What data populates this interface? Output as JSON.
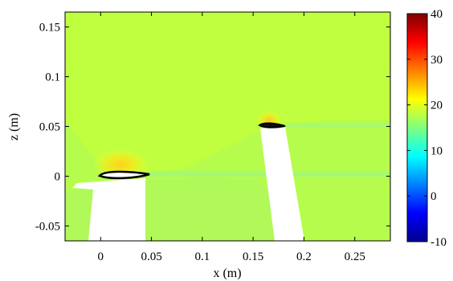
{
  "chart_data": {
    "type": "heatmap",
    "title": "",
    "xlabel": "x (m)",
    "ylabel": "z (m)",
    "xlim": [
      -0.035,
      0.285
    ],
    "ylim": [
      -0.065,
      0.165
    ],
    "x_ticks": [
      0,
      0.05,
      0.1,
      0.15,
      0.2,
      0.25
    ],
    "x_tick_labels": [
      "0",
      "0.05",
      "0.1",
      "0.15",
      "0.2",
      "0.25"
    ],
    "y_ticks": [
      -0.05,
      0,
      0.05,
      0.1,
      0.15
    ],
    "y_tick_labels": [
      "-0.05",
      "0",
      "0.05",
      "0.1",
      "0.15"
    ],
    "colorbar": {
      "colormap": "jet",
      "range": [
        -10,
        40
      ],
      "ticks": [
        -10,
        0,
        10,
        20,
        30,
        40
      ],
      "tick_labels": [
        "-10",
        "0",
        "10",
        "20",
        "30",
        "40"
      ],
      "placement": "right"
    },
    "background_value": 19,
    "field_colors": {
      "background": "#c0ff3f",
      "wake_band": "#a8fb6a",
      "lower_region": "#b2fb52",
      "stagnation_high": "#f4ea1c"
    },
    "airfoils": [
      {
        "x_le": 0.0,
        "x_te": 0.05,
        "z": 0.0,
        "thickness": 0.007,
        "max_value": 23
      },
      {
        "x_le": 0.16,
        "x_te": 0.182,
        "z": 0.051,
        "thickness": 0.004,
        "max_value": 23
      }
    ],
    "masked_supports": [
      {
        "x_top_left": 0.0,
        "x_top_right": 0.05,
        "x_bottom_left": -0.005,
        "x_bottom_right": 0.047,
        "z_top": -0.005,
        "z_bottom": -0.065
      },
      {
        "x_top_left": 0.16,
        "x_top_right": 0.178,
        "x_bottom_left": 0.167,
        "x_bottom_right": 0.2,
        "z_top": 0.047,
        "z_bottom": -0.065
      }
    ],
    "grid": false
  }
}
